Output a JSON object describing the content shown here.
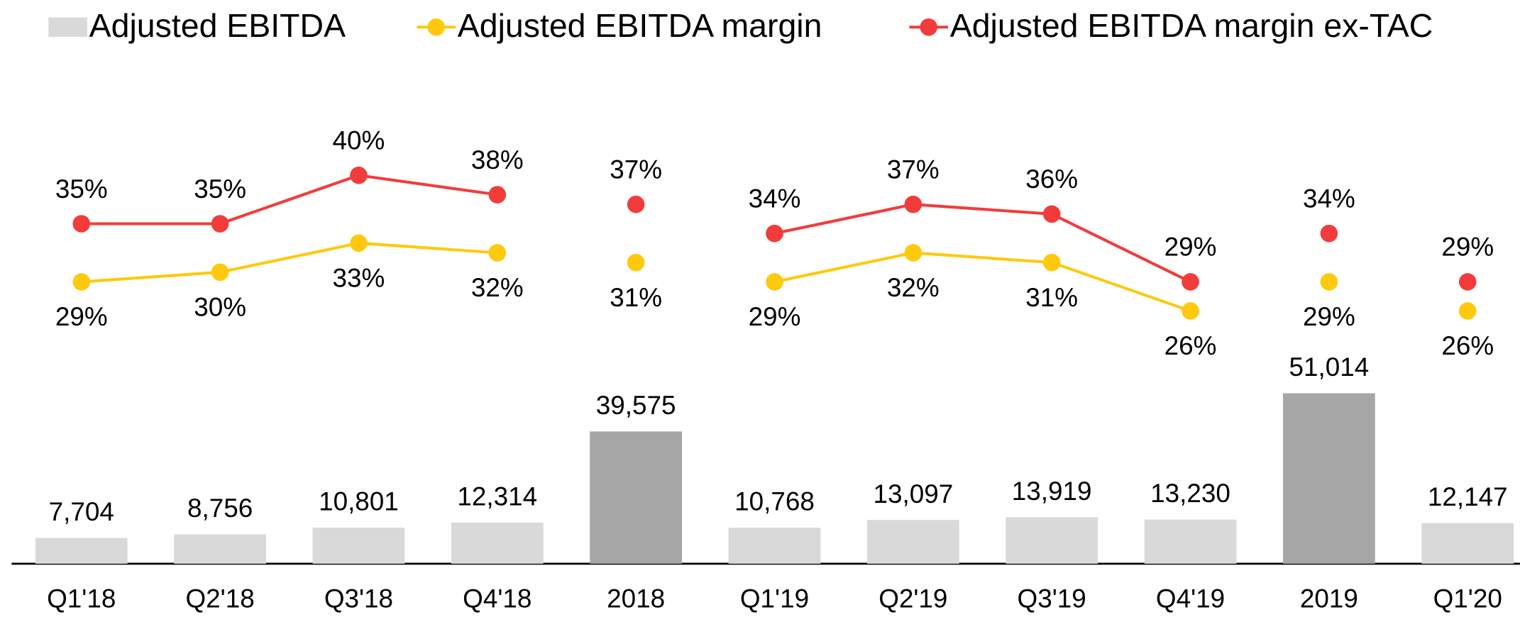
{
  "chart_data": {
    "type": "bar_line",
    "categories": [
      "Q1'18",
      "Q2'18",
      "Q3'18",
      "Q4'18",
      "2018",
      "Q1'19",
      "Q2'19",
      "Q3'19",
      "Q4'19",
      "2019",
      "Q1'20"
    ],
    "series": [
      {
        "name": "Adjusted EBITDA",
        "type": "bar",
        "color": "#d9d9d9",
        "colors": [
          "#d9d9d9",
          "#d9d9d9",
          "#d9d9d9",
          "#d9d9d9",
          "#a6a6a6",
          "#d9d9d9",
          "#d9d9d9",
          "#d9d9d9",
          "#d9d9d9",
          "#a6a6a6",
          "#d9d9d9"
        ],
        "values": [
          7704,
          8756,
          10801,
          12314,
          39575,
          10768,
          13097,
          13919,
          13230,
          51014,
          12147
        ],
        "value_labels": [
          "7,704",
          "8,756",
          "10,801",
          "12,314",
          "39,575",
          "10,768",
          "13,097",
          "13,919",
          "13,230",
          "51,014",
          "12,147"
        ]
      },
      {
        "name": "Adjusted EBITDA margin",
        "type": "line",
        "axis": "y2",
        "color": "#ffc90e",
        "label_position": "below",
        "values": [
          29,
          30,
          33,
          32,
          31,
          29,
          32,
          31,
          26,
          29,
          26
        ],
        "value_labels": [
          "29%",
          "30%",
          "33%",
          "32%",
          "31%",
          "29%",
          "32%",
          "31%",
          "26%",
          "29%",
          "26%"
        ]
      },
      {
        "name": "Adjusted EBITDA margin ex-TAC",
        "type": "line",
        "axis": "y2",
        "color": "#f23c3c",
        "label_position": "above",
        "values": [
          35,
          35,
          40,
          38,
          37,
          34,
          37,
          36,
          29,
          34,
          29
        ],
        "value_labels": [
          "35%",
          "35%",
          "40%",
          "38%",
          "37%",
          "34%",
          "37%",
          "36%",
          "29%",
          "34%",
          "29%"
        ]
      }
    ],
    "ylim": [
      0,
      150000
    ],
    "y2lim": [
      0,
      50
    ],
    "legend": "top"
  }
}
